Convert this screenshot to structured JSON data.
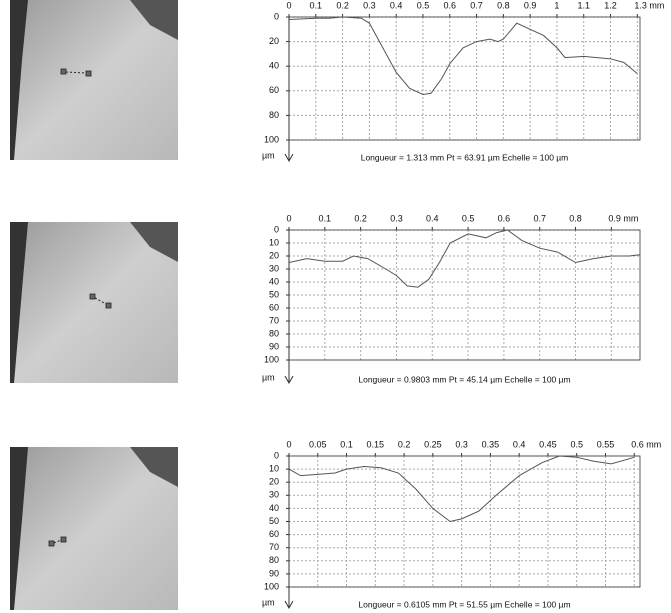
{
  "chart_data": [
    {
      "type": "line",
      "color": "#555555",
      "grid": true,
      "y_label": "µm",
      "caption": "Longueur = 1.313 mm  Pt = 63.91 µm  Echelle = 100 µm",
      "xlim": [
        0,
        1.31
      ],
      "ylim": [
        0,
        100
      ],
      "xticks": [
        0,
        0.1,
        0.2,
        0.3,
        0.4,
        0.5,
        0.6,
        0.7,
        0.8,
        0.9,
        1,
        1.1,
        1.2,
        {
          "value": 1.3,
          "label": "1.3 mm"
        }
      ],
      "yticks": [
        0,
        20,
        40,
        60,
        80,
        100
      ],
      "x": [
        0,
        0.1,
        0.15,
        0.2,
        0.27,
        0.3,
        0.35,
        0.4,
        0.45,
        0.5,
        0.53,
        0.57,
        0.6,
        0.65,
        0.7,
        0.75,
        0.78,
        0.8,
        0.85,
        0.9,
        0.95,
        1,
        1.03,
        1.1,
        1.2,
        1.25,
        1.3
      ],
      "values": [
        2,
        1,
        1,
        0,
        1,
        5,
        25,
        45,
        58,
        63,
        62,
        50,
        38,
        25,
        20,
        18,
        20,
        18,
        5,
        10,
        15,
        25,
        33,
        32,
        34,
        37,
        46
      ]
    },
    {
      "type": "line",
      "color": "#555555",
      "grid": true,
      "y_label": "µm",
      "caption": "Longueur = 0.9803 mm  Pt = 45.14 µm  Echelle = 100 µm",
      "xlim": [
        0,
        0.98
      ],
      "ylim": [
        0,
        100
      ],
      "xticks": [
        0,
        0.1,
        0.2,
        0.3,
        0.4,
        0.5,
        0.6,
        0.7,
        0.8,
        {
          "value": 0.9,
          "label": "0.9 mm"
        }
      ],
      "yticks": [
        0,
        10,
        20,
        30,
        40,
        50,
        60,
        70,
        80,
        90,
        100
      ],
      "x": [
        0,
        0.05,
        0.1,
        0.15,
        0.18,
        0.22,
        0.27,
        0.3,
        0.33,
        0.36,
        0.39,
        0.42,
        0.45,
        0.5,
        0.55,
        0.58,
        0.61,
        0.65,
        0.7,
        0.75,
        0.8,
        0.85,
        0.9,
        0.95,
        0.98
      ],
      "values": [
        25,
        22,
        24,
        24,
        20,
        22,
        30,
        35,
        43,
        44,
        38,
        25,
        10,
        3,
        6,
        2,
        0,
        8,
        14,
        17,
        25,
        22,
        20,
        20,
        19
      ]
    },
    {
      "type": "line",
      "color": "#555555",
      "grid": true,
      "y_label": "µm",
      "caption": "Longueur = 0.6105 mm  Pt = 51.55 µm  Echelle = 100 µm",
      "xlim": [
        0,
        0.61
      ],
      "ylim": [
        0,
        100
      ],
      "xticks": [
        0,
        0.05,
        0.1,
        0.15,
        0.2,
        0.25,
        0.3,
        0.35,
        0.4,
        0.45,
        0.5,
        0.55,
        {
          "value": 0.6,
          "label": "0.6 mm"
        }
      ],
      "yticks": [
        0,
        10,
        20,
        30,
        40,
        50,
        60,
        70,
        80,
        90,
        100
      ],
      "x": [
        0,
        0.02,
        0.05,
        0.08,
        0.1,
        0.13,
        0.16,
        0.19,
        0.22,
        0.25,
        0.28,
        0.3,
        0.33,
        0.36,
        0.4,
        0.44,
        0.47,
        0.5,
        0.53,
        0.56,
        0.6
      ],
      "values": [
        10,
        15,
        14,
        13,
        10,
        8,
        9,
        13,
        25,
        40,
        50,
        48,
        42,
        30,
        15,
        5,
        0,
        1,
        4,
        6,
        1
      ]
    }
  ]
}
